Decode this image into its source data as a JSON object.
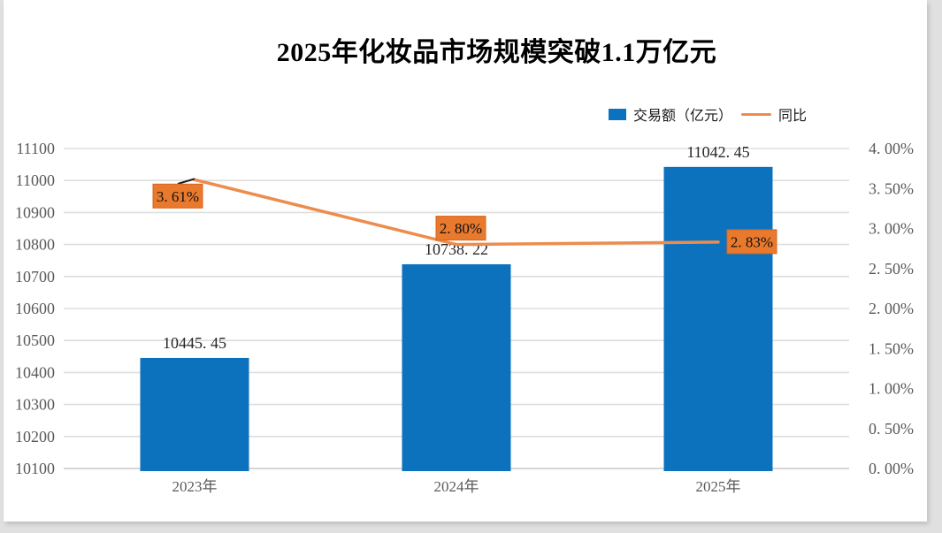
{
  "title": "2025年化妆品市场规模突破1.1万亿元",
  "legend": {
    "bar_label": "交易额（亿元）",
    "line_label": "同比"
  },
  "colors": {
    "bar": "#0d72be",
    "line": "#ed8c4c",
    "label_box_fill": "#e8792d",
    "label_box_border": "#d8661d",
    "grid": "#dedede",
    "axis_line": "#c9c9c9",
    "leader": "#1a1a1a"
  },
  "chart_data": {
    "type": "bar",
    "subtype": "combo-bar-line-dual-axis",
    "title": "2025年化妆品市场规模突破1.1万亿元",
    "categories": [
      "2023年",
      "2024年",
      "2025年"
    ],
    "series": [
      {
        "name": "交易额（亿元）",
        "type": "bar",
        "axis": "left",
        "values": [
          10445.45,
          10738.22,
          11042.45
        ],
        "labels": [
          "10445. 45",
          "10738. 22",
          "11042. 45"
        ]
      },
      {
        "name": "同比",
        "type": "line",
        "axis": "right",
        "values": [
          3.61,
          2.8,
          2.83
        ],
        "labels": [
          "3. 61%",
          "2. 80%",
          "2. 83%"
        ]
      }
    ],
    "left_axis": {
      "min": 10100,
      "max": 11100,
      "step": 100,
      "ticks": [
        "11100",
        "11000",
        "10900",
        "10800",
        "10700",
        "10600",
        "10500",
        "10400",
        "10300",
        "10200",
        "10100"
      ]
    },
    "right_axis": {
      "min": 0,
      "max": 4,
      "step": 0.5,
      "ticks": [
        "4. 00%",
        "3. 50%",
        "3. 00%",
        "2. 50%",
        "2. 00%",
        "1. 50%",
        "1. 00%",
        "0. 50%",
        "0. 00%"
      ]
    },
    "grid": true,
    "legend_position": "top-right"
  }
}
